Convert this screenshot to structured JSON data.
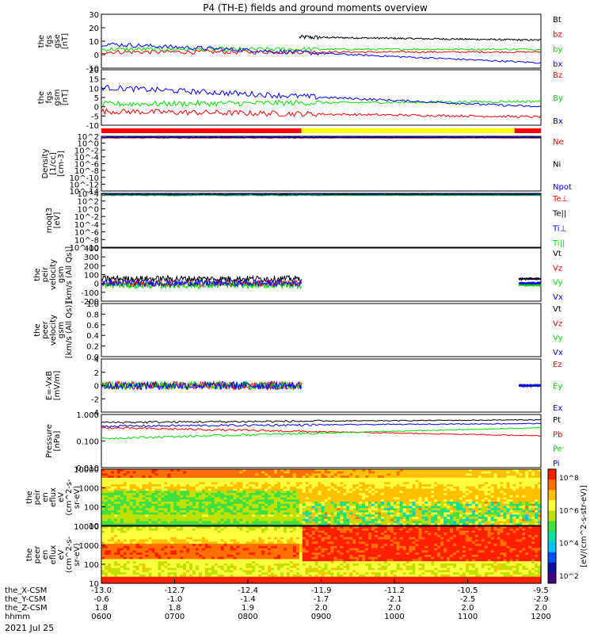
{
  "title": "P4 (TH-E) fields and ground moments overview",
  "date_label": "2021 Jul 25",
  "colors": {
    "black": "#000000",
    "red": "#ff0000",
    "green": "#00dd00",
    "blue": "#0000ff",
    "yellow": "#ffff00"
  },
  "chart_data": [
    {
      "id": "fgs_gse",
      "type": "line",
      "ylabel": [
        "the",
        "fgs",
        "gse",
        "[nT]"
      ],
      "yticks": [
        "30",
        "20",
        "10",
        "0",
        "-10"
      ],
      "ylim": [
        -10,
        30
      ],
      "series": [
        {
          "name": "Bt",
          "color": "#000000"
        },
        {
          "name": "bz",
          "color": "#ff0000"
        },
        {
          "name": "by",
          "color": "#00dd00"
        },
        {
          "name": "bx",
          "color": "#0000ff"
        }
      ]
    },
    {
      "id": "fgs_gsm",
      "type": "line",
      "ylabel": [
        "the",
        "fgs",
        "gsm",
        "[nT]"
      ],
      "yticks": [
        "20",
        "15",
        "10",
        "5",
        "0",
        "-5",
        "-10"
      ],
      "ylim": [
        -10,
        20
      ],
      "series": [
        {
          "name": "Bz",
          "color": "#ff0000"
        },
        {
          "name": "By",
          "color": "#00dd00"
        },
        {
          "name": "Bx",
          "color": "#0000ff"
        }
      ]
    },
    {
      "id": "mode_bar",
      "type": "bar",
      "segments": [
        {
          "color": "#ff0000",
          "start": 0,
          "end": 0.455
        },
        {
          "color": "#ffff00",
          "start": 0.455,
          "end": 0.94
        },
        {
          "color": "#ff0000",
          "start": 0.94,
          "end": 1
        }
      ]
    },
    {
      "id": "density",
      "type": "line",
      "ylabel": [
        "Density",
        "[1/cc]",
        "[cm-3]"
      ],
      "yticks": [
        "10^2",
        "10^0",
        "10^-2",
        "10^-4",
        "10^-6",
        "10^-8",
        "10^-10",
        "10^-12",
        "10^-14"
      ],
      "series": [
        {
          "name": "Ne",
          "color": "#ff0000"
        },
        {
          "name": "Ni",
          "color": "#000000"
        },
        {
          "name": "Npot",
          "color": "#0000ff"
        }
      ]
    },
    {
      "id": "temperature",
      "type": "line",
      "ylabel": [
        "moqt3",
        "[eV]"
      ],
      "yticks": [
        "10^4",
        "10^2",
        "10^0",
        "10^-2",
        "10^-4",
        "10^-6",
        "10^-8",
        "10^-10"
      ],
      "series": [
        {
          "name": "Te⊥",
          "color": "#ff0000"
        },
        {
          "name": "Te||",
          "color": "#000000"
        },
        {
          "name": "Ti⊥",
          "color": "#0000ff"
        },
        {
          "name": "Ti||",
          "color": "#00dd00"
        }
      ]
    },
    {
      "id": "peir_velocity",
      "type": "line",
      "ylabel": [
        "the",
        "peir",
        "velocity",
        "gsm",
        "[km/s (All Qs)]"
      ],
      "yticks": [
        "400",
        "300",
        "200",
        "100",
        "0",
        "-100",
        "-200"
      ],
      "ylim": [
        -200,
        400
      ],
      "series": [
        {
          "name": "Vt",
          "color": "#000000"
        },
        {
          "name": "Vz",
          "color": "#ff0000"
        },
        {
          "name": "Vy",
          "color": "#00dd00"
        },
        {
          "name": "Vx",
          "color": "#0000ff"
        }
      ]
    },
    {
      "id": "peer_velocity",
      "type": "line",
      "ylabel": [
        "the",
        "peer",
        "velocity",
        "gsm",
        "[km/s (All Qs)]"
      ],
      "yticks": [
        "1.0",
        "0.8",
        "0.6",
        "0.4",
        "0.2",
        "0.0"
      ],
      "ylim": [
        0,
        1
      ],
      "series": [
        {
          "name": "Vt",
          "color": "#000000"
        },
        {
          "name": "Vz",
          "color": "#ff0000"
        },
        {
          "name": "Vy",
          "color": "#00dd00"
        },
        {
          "name": "Vx",
          "color": "#0000ff"
        }
      ]
    },
    {
      "id": "efield",
      "type": "line",
      "ylabel": [
        "E=-VxB",
        "[mV/m]"
      ],
      "yticks": [
        "4",
        "2",
        "0",
        "-2",
        "-4"
      ],
      "ylim": [
        -4,
        4
      ],
      "series": [
        {
          "name": "Ez",
          "color": "#ff0000"
        },
        {
          "name": "Ey",
          "color": "#00dd00"
        },
        {
          "name": "Ex",
          "color": "#0000ff"
        }
      ]
    },
    {
      "id": "pressure",
      "type": "line",
      "ylabel": [
        "Pressure",
        "[nPa]"
      ],
      "yticks": [
        "1.000",
        "0.100",
        "0.010"
      ],
      "series": [
        {
          "name": "Pt",
          "color": "#000000"
        },
        {
          "name": "Pb",
          "color": "#ff0000"
        },
        {
          "name": "Pe",
          "color": "#00dd00"
        },
        {
          "name": "Pi",
          "color": "#0000ff"
        }
      ]
    },
    {
      "id": "peir_spec",
      "type": "heatmap",
      "ylabel": [
        "the",
        "peir",
        "en",
        "eflux",
        "eV",
        "(cm^2-s-",
        "sr-eV)"
      ],
      "yticks": [
        "10000",
        "1000",
        "100",
        "10"
      ]
    },
    {
      "id": "peer_spec",
      "type": "heatmap",
      "ylabel": [
        "the",
        "peer",
        "en",
        "eflux",
        "eV",
        "(cm^2-s-",
        "sr-eV)"
      ],
      "yticks": [
        "10000",
        "1000",
        "100",
        "10"
      ]
    }
  ],
  "colorbar": {
    "labels": [
      "10^8",
      "10^6",
      "10^4",
      "10^2"
    ],
    "title": "[eV/(cm^2-s-str-eV)]"
  },
  "time_axis": {
    "rows": [
      {
        "label": "the_X-CSM",
        "values": [
          "-13.0",
          "-12.7",
          "-12.4",
          "-11.9",
          "-11.2",
          "-10.5",
          "-9.5"
        ]
      },
      {
        "label": "the_Y-CSM",
        "values": [
          "-0.6",
          "-1.0",
          "-1.4",
          "-1.7",
          "-2.1",
          "-2.5",
          "-2.9"
        ]
      },
      {
        "label": "the_Z-CSM",
        "values": [
          "1.8",
          "1.8",
          "1.9",
          "2.0",
          "2.0",
          "2.0",
          "2.0"
        ]
      },
      {
        "label": "hhmm",
        "values": [
          "0600",
          "0700",
          "0800",
          "0900",
          "1000",
          "1100",
          "1200"
        ]
      }
    ]
  }
}
